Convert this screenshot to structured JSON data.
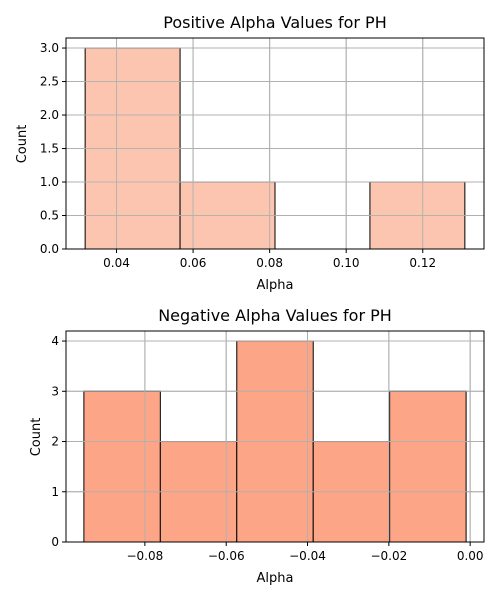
{
  "chart_data": [
    {
      "type": "bar",
      "title": "Positive Alpha Values for PH",
      "xlabel": "Alpha",
      "ylabel": "Count",
      "bins": [
        {
          "x0": 0.0318,
          "x1": 0.0566,
          "count": 3
        },
        {
          "x0": 0.0566,
          "x1": 0.0814,
          "count": 1
        },
        {
          "x0": 0.0814,
          "x1": 0.1062,
          "count": 0
        },
        {
          "x0": 0.1062,
          "x1": 0.131,
          "count": 1
        }
      ],
      "xlim": [
        0.0268,
        0.136
      ],
      "ylim": [
        0,
        3.15
      ],
      "xticks": [
        0.04,
        0.06,
        0.08,
        0.1,
        0.12
      ],
      "xtick_labels": [
        "0.04",
        "0.06",
        "0.08",
        "0.10",
        "0.12"
      ],
      "yticks": [
        0,
        0.5,
        1.0,
        1.5,
        2.0,
        2.5,
        3.0
      ],
      "ytick_labels": [
        "0.0",
        "0.5",
        "1.0",
        "1.5",
        "2.0",
        "2.5",
        "3.0"
      ],
      "bar_color": "#fcc5b0",
      "grid": true
    },
    {
      "type": "bar",
      "title": "Negative Alpha Values for PH",
      "xlabel": "Alpha",
      "ylabel": "Count",
      "bins": [
        {
          "x0": -0.095,
          "x1": -0.0762,
          "count": 3
        },
        {
          "x0": -0.0762,
          "x1": -0.0574,
          "count": 2
        },
        {
          "x0": -0.0574,
          "x1": -0.0386,
          "count": 4
        },
        {
          "x0": -0.0386,
          "x1": -0.0198,
          "count": 2
        },
        {
          "x0": -0.0198,
          "x1": -0.001,
          "count": 3
        }
      ],
      "xlim": [
        -0.0994,
        0.0034
      ],
      "ylim": [
        0,
        4.2
      ],
      "xticks": [
        -0.08,
        -0.06,
        -0.04,
        -0.02,
        0.0
      ],
      "xtick_labels": [
        "−0.08",
        "−0.06",
        "−0.04",
        "−0.02",
        "0.00"
      ],
      "yticks": [
        0,
        1,
        2,
        3,
        4
      ],
      "ytick_labels": [
        "0",
        "1",
        "2",
        "3",
        "4"
      ],
      "bar_color": "#fca687",
      "grid": true
    }
  ]
}
